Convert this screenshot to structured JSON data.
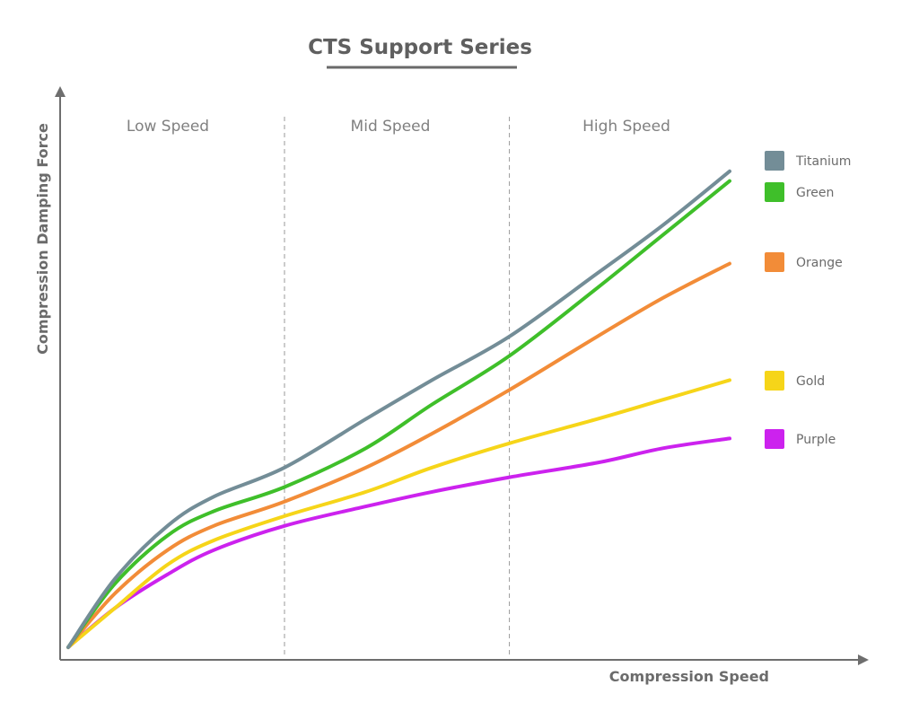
{
  "chart_data": {
    "type": "line",
    "title": "CTS Support Series",
    "xlabel": "Compression Speed",
    "ylabel": "Compression Damping Force",
    "xlim": [
      0,
      100
    ],
    "ylim": [
      0,
      100
    ],
    "regions": [
      {
        "label": "Low Speed",
        "from": 0,
        "to": 32.7
      },
      {
        "label": "Mid Speed",
        "from": 32.7,
        "to": 66.7
      },
      {
        "label": "High Speed",
        "from": 66.7,
        "to": 100
      }
    ],
    "legend_position": "right",
    "series": [
      {
        "name": "Titanium",
        "color": "#738d97",
        "x": [
          0,
          7,
          15,
          22,
          32.7,
          45,
          55,
          66.7,
          80,
          90,
          100
        ],
        "y": [
          0,
          14,
          25,
          31,
          37,
          47,
          55,
          64,
          77,
          87,
          98
        ]
      },
      {
        "name": "Green",
        "color": "#3fbf2a",
        "x": [
          0,
          7,
          15,
          22,
          32.7,
          45,
          55,
          66.7,
          80,
          90,
          100
        ],
        "y": [
          0,
          13,
          23,
          28,
          33,
          41,
          50,
          60,
          74,
          85,
          96
        ]
      },
      {
        "name": "Orange",
        "color": "#f28c38",
        "x": [
          0,
          7,
          15,
          22,
          32.7,
          45,
          55,
          66.7,
          80,
          90,
          100
        ],
        "y": [
          0,
          11,
          20,
          25,
          30,
          37,
          44,
          53,
          64,
          72,
          79
        ]
      },
      {
        "name": "Gold",
        "color": "#f6d519",
        "x": [
          0,
          7,
          15,
          22,
          32.7,
          45,
          55,
          66.7,
          80,
          90,
          100
        ],
        "y": [
          0,
          8,
          17,
          22,
          27,
          32,
          37,
          42,
          47,
          51,
          55
        ]
      },
      {
        "name": "Purple",
        "color": "#cc22ee",
        "x": [
          0,
          7,
          15,
          22,
          32.7,
          45,
          55,
          66.7,
          80,
          90,
          100
        ],
        "y": [
          0,
          8,
          15,
          20,
          25,
          29,
          32,
          35,
          38,
          41,
          43
        ]
      }
    ]
  }
}
